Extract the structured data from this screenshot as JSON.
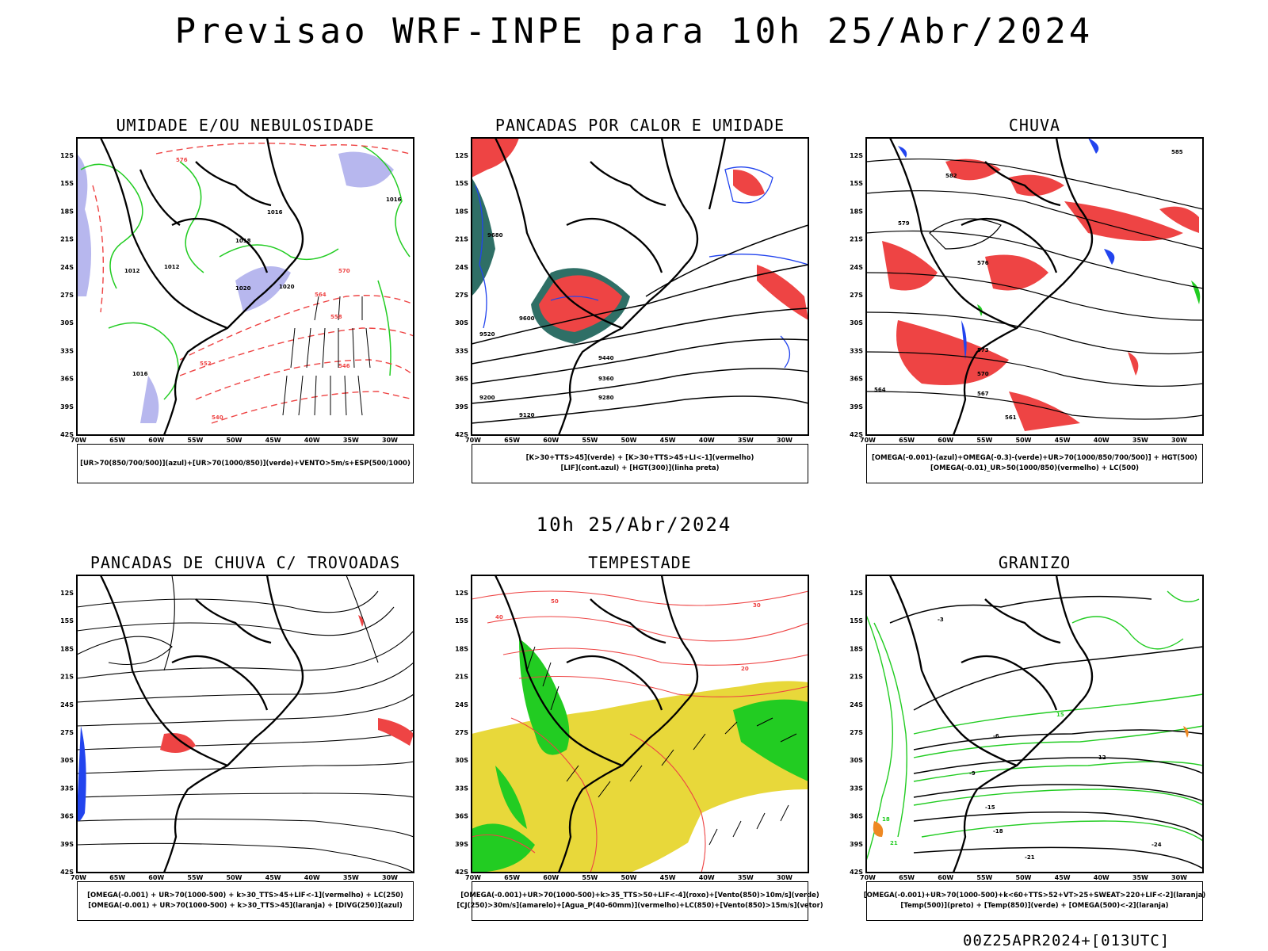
{
  "main_title": "Previsao WRF-INPE  para 10h 25/Abr/2024",
  "mid_date": "10h 25/Abr/2024",
  "footer_stamp": "00Z25APR2024+[013UTC]",
  "axes": {
    "lat_labels": [
      "12S",
      "15S",
      "18S",
      "21S",
      "24S",
      "27S",
      "30S",
      "33S",
      "36S",
      "39S",
      "42S"
    ],
    "lon_labels": [
      "70W",
      "65W",
      "60W",
      "55W",
      "50W",
      "45W",
      "40W",
      "35W",
      "30W"
    ]
  },
  "panels": [
    {
      "title": "UMIDADE E/OU NEBULOSIDADE",
      "legend": [
        "[UR>70(850/700/500)](azul)+[UR>70(1000/850)](verde)+VENTO>5m/s+ESP(500/1000)"
      ],
      "contour_labels": [
        "1016",
        "1012",
        "1020",
        "1012",
        "1016",
        "1020",
        "1016",
        "1018",
        "576",
        "570",
        "564",
        "558",
        "552",
        "546",
        "540"
      ]
    },
    {
      "title": "PANCADAS POR CALOR E UMIDADE",
      "legend": [
        "[K>30+TTS>45](verde) + [K>30+TTS>45+LI<-1](vermelho)",
        "[LIF](cont.azul) + [HGT(300)](linha preta)"
      ],
      "contour_labels": [
        "9680",
        "9600",
        "9520",
        "9440",
        "9360",
        "9280",
        "9200",
        "9120"
      ]
    },
    {
      "title": "CHUVA",
      "legend": [
        "[OMEGA(-0.001)-(azul)+OMEGA(-0.3)-(verde)+UR>70(1000/850/700/500)] + HGT(500)",
        "[OMEGA(-0.01)_UR>50(1000/850)(vermelho) + LC(500)"
      ],
      "contour_labels": [
        "585",
        "582",
        "579",
        "576",
        "573",
        "570",
        "567",
        "564",
        "561"
      ]
    },
    {
      "title": "PANCADAS DE CHUVA C/ TROVOADAS",
      "legend": [
        "[OMEGA(-0.001) + UR>70(1000-500) + k>30_TTS>45+LIF<-1](vermelho) + LC(250)",
        "[OMEGA(-0.001) + UR>70(1000-500) + k>30_TTS>45](laranja) + [DIVG(250)](azul)"
      ],
      "contour_labels": []
    },
    {
      "title": "TEMPESTADE",
      "legend": [
        "[OMEGA(-0.001)+UR>70(1000-500)+k>35_TTS>50+LIF<-4](roxo)+[Vento(850)>10m/s](verde)",
        "[CJ(250)>30m/s](amarelo)+[Agua_P(40-60mm)](vermelho)+LC(850)+[Vento(850)>15m/s](vetor)"
      ],
      "contour_labels": [
        "50",
        "40",
        "30",
        "20"
      ]
    },
    {
      "title": "GRANIZO",
      "legend": [
        "[OMEGA(-0.001)+UR>70(1000-500)+k<60+TTS>52+VT>25+SWEAT>220+LIF<-2](laranja)",
        "[Temp(500)](preto) + [Temp(850)](verde) + [OMEGA(500)<-2](laranja)"
      ],
      "contour_labels": [
        "-3",
        "-6",
        "-9",
        "-12",
        "-15",
        "-18",
        "-21",
        "-24",
        "15",
        "18",
        "21"
      ]
    }
  ],
  "colors": {
    "red": "#ee4444",
    "green": "#22cc22",
    "blue": "#2244ee",
    "lavender": "#b7b7ee",
    "dark_teal": "#2f6f66",
    "yellow": "#e8d83a",
    "orange": "#ee8822",
    "contour": "#000000"
  }
}
